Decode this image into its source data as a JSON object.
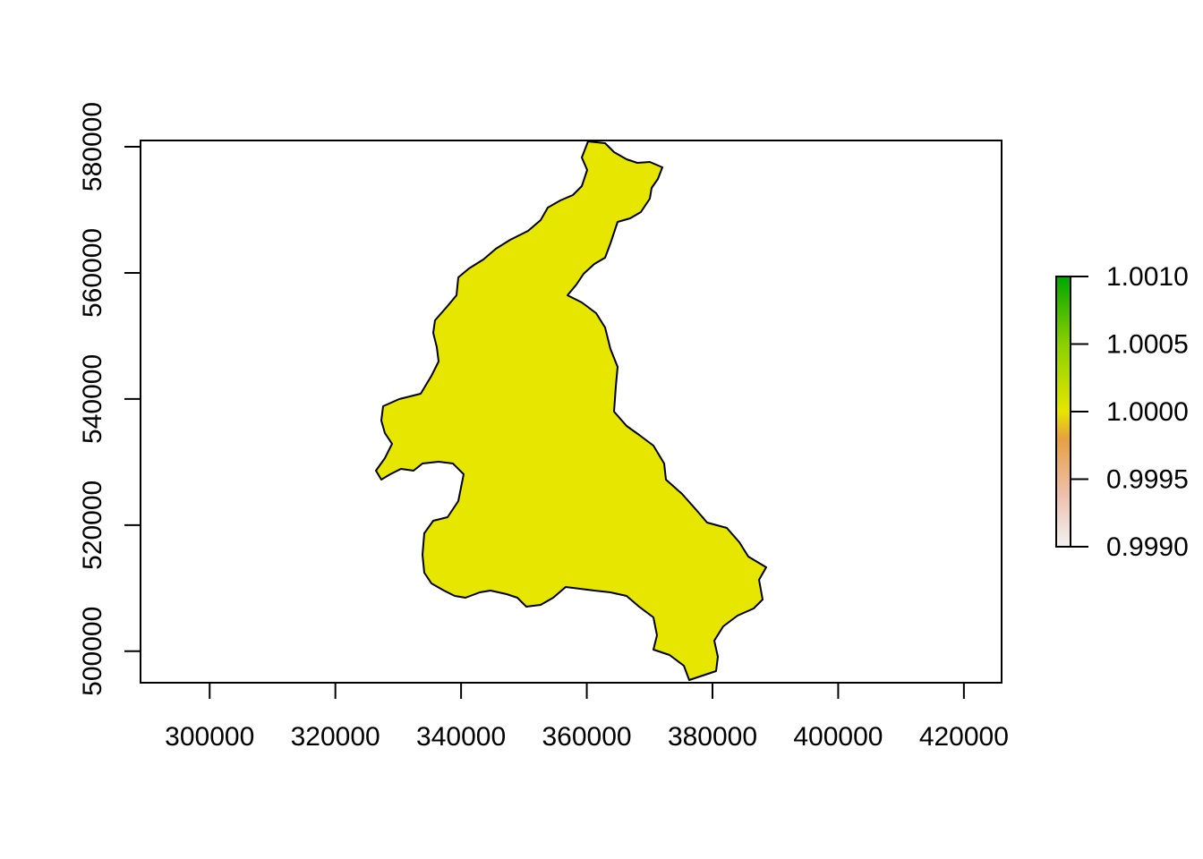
{
  "chart_data": {
    "type": "heatmap",
    "title": "",
    "xlabel": "",
    "ylabel": "",
    "xlim": [
      289000,
      426000
    ],
    "ylim": [
      495000,
      581000
    ],
    "x_ticks": [
      300000,
      320000,
      340000,
      360000,
      380000,
      400000,
      420000
    ],
    "x_tick_labels": [
      "300000",
      "320000",
      "340000",
      "360000",
      "380000",
      "400000",
      "420000"
    ],
    "y_ticks": [
      500000,
      520000,
      540000,
      560000,
      580000
    ],
    "y_tick_labels": [
      "500000",
      "520000",
      "540000",
      "560000",
      "580000"
    ],
    "raster_value": 1.0,
    "fill_color": "#E6E600",
    "legend": {
      "position": "right",
      "range": [
        0.999,
        1.001
      ],
      "ticks": [
        0.999,
        0.9995,
        1.0,
        1.0005,
        1.001
      ],
      "tick_labels": [
        "0.9990",
        "0.9995",
        "1.0000",
        "1.0005",
        "1.0010"
      ],
      "colors": [
        "#F2F2F2",
        "#EEBEAA",
        "#E6A040",
        "#E6E600",
        "#8BD000",
        "#00A600"
      ]
    }
  }
}
